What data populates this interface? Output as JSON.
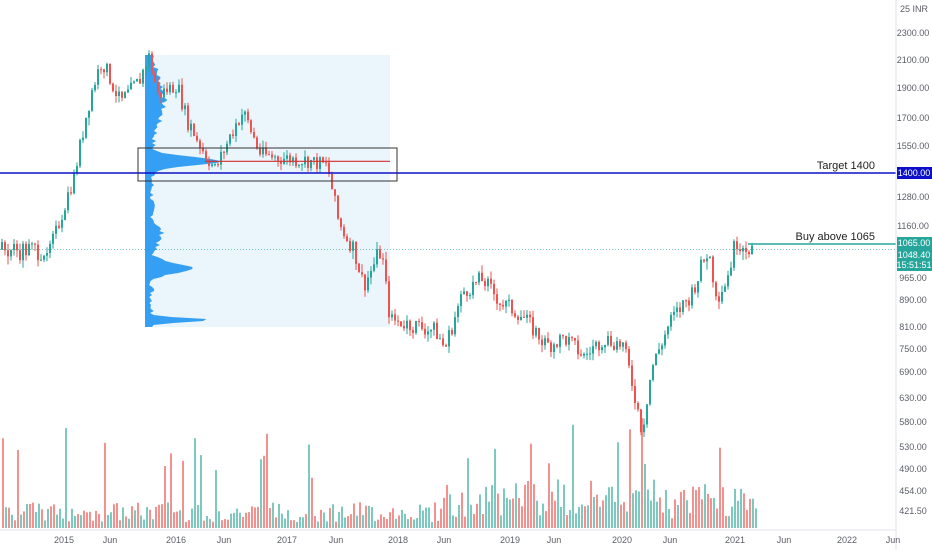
{
  "chart_data": {
    "type": "candlestick-with-volume",
    "currency_label": "25 INR",
    "y_axis_ticks": [
      "2300.00",
      "2100.00",
      "1900.00",
      "1700.00",
      "1550.00",
      "1400.00",
      "1280.00",
      "1160.00",
      "1065.00",
      "965.00",
      "890.00",
      "810.00",
      "750.00",
      "690.00",
      "630.00",
      "580.00",
      "530.00",
      "490.00",
      "454.00",
      "421.50"
    ],
    "y_tick_values": [
      2300,
      2100,
      1900,
      1700,
      1550,
      1400,
      1280,
      1160,
      1065,
      965,
      890,
      810,
      750,
      690,
      630,
      580,
      530,
      490,
      454,
      421.5
    ],
    "x_axis_ticks": [
      "2015",
      "Jun",
      "2016",
      "Jun",
      "2017",
      "Jun",
      "2018",
      "Jun",
      "2019",
      "Jun",
      "2020",
      "Jun",
      "2021",
      "Jun",
      "2022",
      "Jun"
    ],
    "x_tick_dates": [
      "2015-01",
      "2015-06",
      "2016-01",
      "2016-06",
      "2017-01",
      "2017-06",
      "2018-01",
      "2018-06",
      "2019-01",
      "2019-06",
      "2020-01",
      "2020-06",
      "2021-01",
      "2021-06",
      "2022-01",
      "2022-06"
    ],
    "last_price": "1048.40",
    "countdown": "15:51:51",
    "levels": [
      {
        "label": "Target 1400",
        "price_label": "1400.00",
        "value": 1400,
        "color": "#0d10c9"
      },
      {
        "label": "Buy above 1065",
        "price_label": "1065.00",
        "value": 1065,
        "color": "#26a69a"
      }
    ],
    "volume_profile_poc": 1465,
    "price_path": [
      [
        "2014-11",
        1000
      ],
      [
        "2015-02",
        1380
      ],
      [
        "2015-04",
        1900
      ],
      [
        "2015-05",
        2100
      ],
      [
        "2015-07",
        1800
      ],
      [
        "2015-09",
        1950
      ],
      [
        "2015-10",
        2130
      ],
      [
        "2015-11",
        1850
      ],
      [
        "2016-01",
        1930
      ],
      [
        "2016-02",
        1700
      ],
      [
        "2016-04",
        1500
      ],
      [
        "2016-05",
        1420
      ],
      [
        "2016-07",
        1650
      ],
      [
        "2016-08",
        1740
      ],
      [
        "2016-10",
        1500
      ],
      [
        "2017-01",
        1480
      ],
      [
        "2017-03",
        1470
      ],
      [
        "2017-05",
        1440
      ],
      [
        "2017-06",
        1200
      ],
      [
        "2017-07",
        1100
      ],
      [
        "2017-08",
        1050
      ],
      [
        "2017-09",
        940
      ],
      [
        "2017-11",
        1050
      ],
      [
        "2017-12",
        830
      ],
      [
        "2018-02",
        820
      ],
      [
        "2018-05",
        800
      ],
      [
        "2018-06",
        750
      ],
      [
        "2018-08",
        920
      ],
      [
        "2018-10",
        960
      ],
      [
        "2018-12",
        880
      ],
      [
        "2019-02",
        850
      ],
      [
        "2019-05",
        760
      ],
      [
        "2019-07",
        780
      ],
      [
        "2019-09",
        730
      ],
      [
        "2019-11",
        780
      ],
      [
        "2020-01",
        760
      ],
      [
        "2020-03",
        560
      ],
      [
        "2020-04",
        700
      ],
      [
        "2020-06",
        830
      ],
      [
        "2020-08",
        900
      ],
      [
        "2020-10",
        1050
      ],
      [
        "2020-11",
        900
      ],
      [
        "2020-12",
        960
      ],
      [
        "2021-01",
        1080
      ],
      [
        "2021-03",
        1048
      ]
    ]
  }
}
